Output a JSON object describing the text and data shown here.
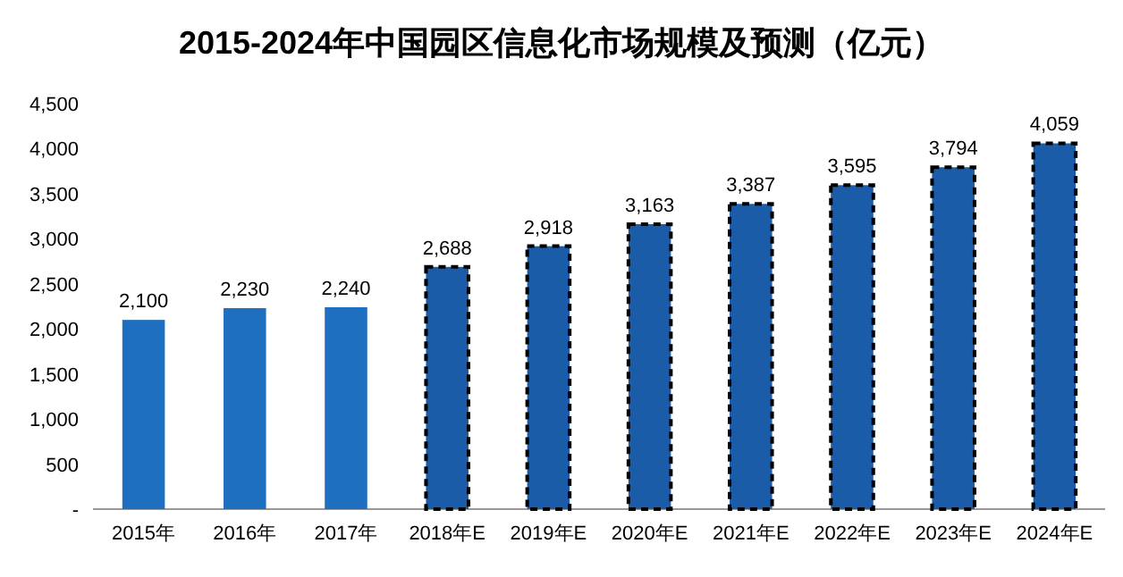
{
  "chart_data": {
    "type": "bar",
    "title": "2015-2024年中国园区信息化市场规模及预测（亿元）",
    "categories": [
      "2015年",
      "2016年",
      "2017年",
      "2018年E",
      "2019年E",
      "2020年E",
      "2021年E",
      "2022年E",
      "2023年E",
      "2024年E"
    ],
    "series": [
      {
        "color": "#1f6fc0",
        "line_style": "solid",
        "values": [
          2100,
          2230,
          2240,
          null,
          null,
          null,
          null,
          null,
          null,
          null
        ],
        "value_labels": [
          "2,100",
          "2,230",
          "2,240",
          null,
          null,
          null,
          null,
          null,
          null,
          null
        ]
      },
      {
        "color": "#1a5ca8",
        "line_style": "dashed",
        "values": [
          null,
          null,
          null,
          2688,
          2918,
          3163,
          3387,
          3595,
          3794,
          4059
        ],
        "value_labels": [
          null,
          null,
          null,
          "2,688",
          "2,918",
          "3,163",
          "3,387",
          "3,595",
          "3,794",
          "4,059"
        ]
      }
    ],
    "ylim": [
      0,
      4500
    ],
    "yticks": [
      {
        "value": 0,
        "label": "-"
      },
      {
        "value": 500,
        "label": "500"
      },
      {
        "value": 1000,
        "label": "1,000"
      },
      {
        "value": 1500,
        "label": "1,500"
      },
      {
        "value": 2000,
        "label": "2,000"
      },
      {
        "value": 2500,
        "label": "2,500"
      },
      {
        "value": 3000,
        "label": "3,000"
      },
      {
        "value": 3500,
        "label": "3,500"
      },
      {
        "value": 4000,
        "label": "4,000"
      },
      {
        "value": 4500,
        "label": "4,500"
      }
    ],
    "grid": false
  }
}
